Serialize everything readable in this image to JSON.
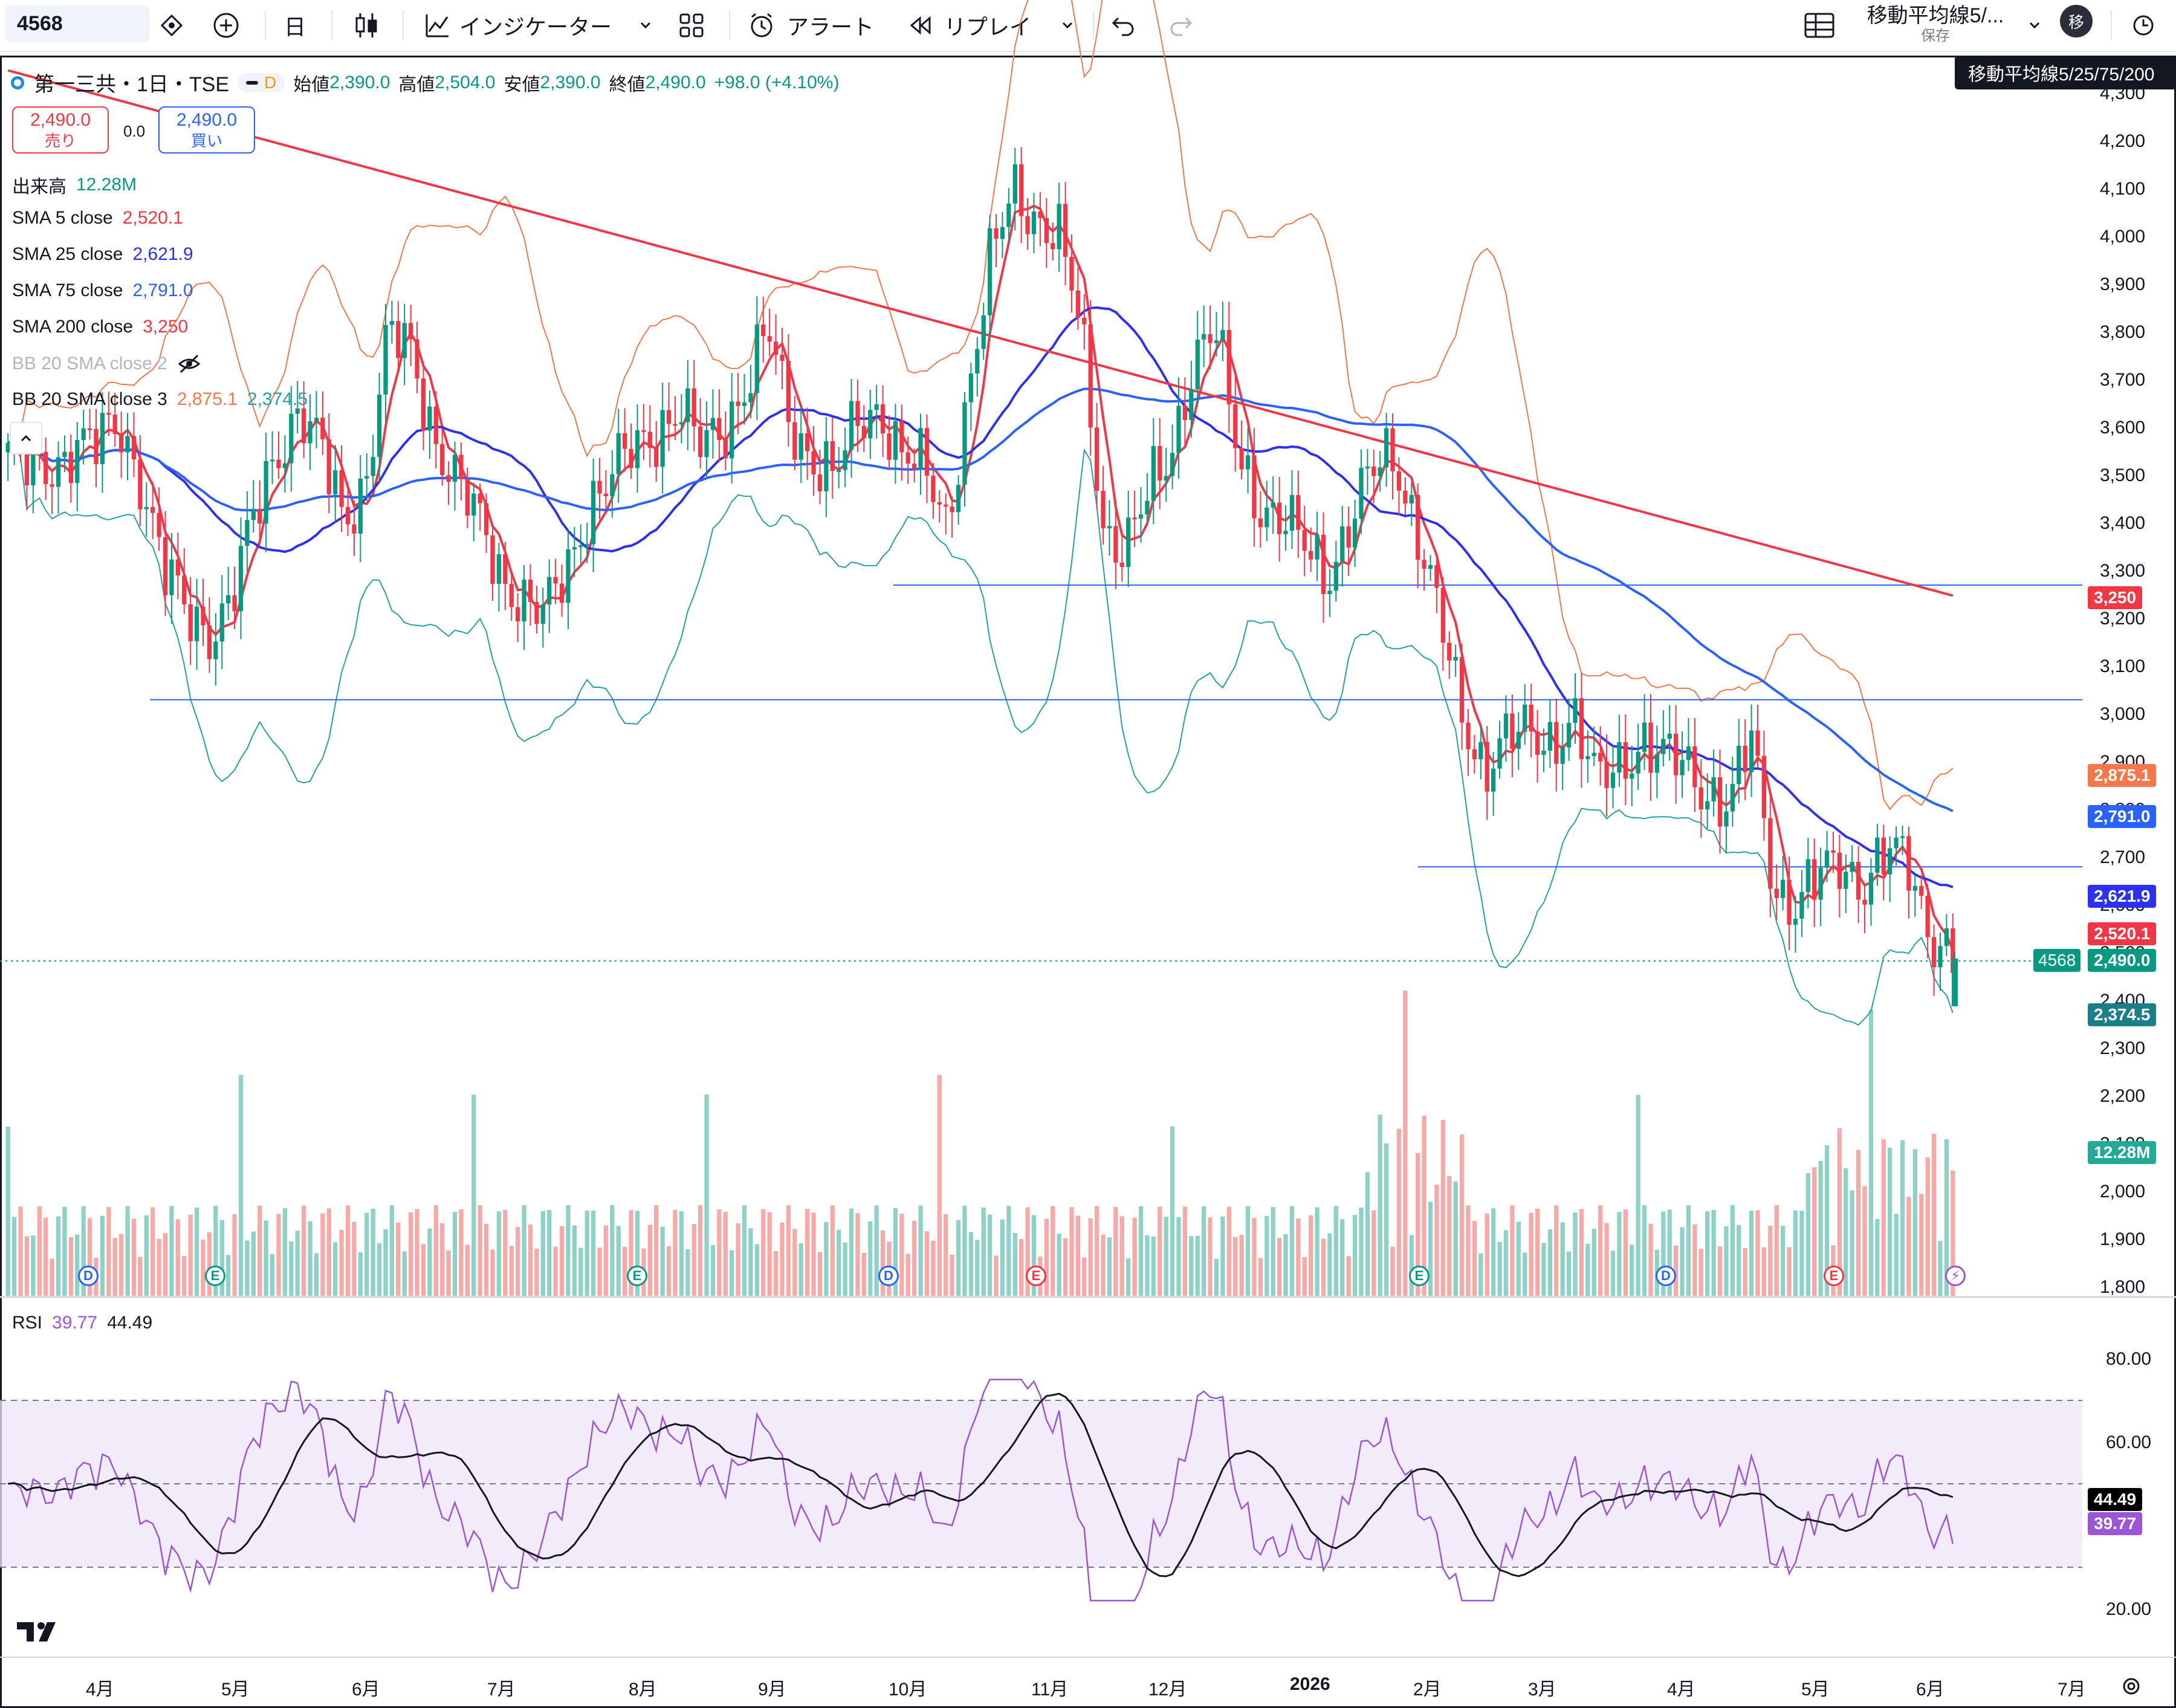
{
  "toolbar": {
    "symbol": "4568",
    "interval": "日",
    "indicators": "インジケーター",
    "alert": "アラート",
    "replay": "リプレイ",
    "layout_name": "移動平均線5/...",
    "layout_save": "保存",
    "avatar": "移",
    "tooltip": "移動平均線5/25/75/200"
  },
  "legend": {
    "title": "第一三共・1日・TSE",
    "badge": "D",
    "open_label": "始値",
    "open": "2,390.0",
    "high_label": "高値",
    "high": "2,504.0",
    "low_label": "安値",
    "low": "2,390.0",
    "close_label": "終値",
    "close": "2,490.0",
    "change": "+98.0 (+4.10%)",
    "sell_price": "2,490.0",
    "sell_label": "売り",
    "spread": "0.0",
    "buy_price": "2,490.0",
    "buy_label": "買い",
    "volume_label": "出来高",
    "volume_value": "12.28M",
    "sma5_label": "SMA 5 close",
    "sma5_value": "2,520.1",
    "sma25_label": "SMA 25 close",
    "sma25_value": "2,621.9",
    "sma75_label": "SMA 75 close",
    "sma75_value": "2,791.0",
    "sma200_label": "SMA 200 close",
    "sma200_value": "3,250",
    "bb2_label": "BB 20 SMA close 2",
    "bb3_label": "BB 20 SMA close 3",
    "bb3_upper": "2,875.1",
    "bb3_lower": "2,374.5"
  },
  "price_axis": [
    "4,300",
    "4,200",
    "4,100",
    "4,000",
    "3,900",
    "3,800",
    "3,700",
    "3,600",
    "3,500",
    "3,400",
    "3,300",
    "3,200",
    "3,100",
    "3,000",
    "2,900",
    "2,800",
    "2,700",
    "2,600",
    "2,500",
    "2,400",
    "2,300",
    "2,200",
    "2,100",
    "2,000",
    "1,900",
    "1,800"
  ],
  "price_labels": {
    "sma200": "3,250",
    "bb_upper": "2,875.1",
    "sma75": "2,791.0",
    "sma25": "2,621.9",
    "sma5": "2,520.1",
    "symbol_tag": "4568",
    "last": "2,490.0",
    "bb_lower": "2,374.5",
    "volume": "12.28M"
  },
  "rsi": {
    "label": "RSI",
    "value1": "39.77",
    "value2": "44.49",
    "axis": [
      "80.00",
      "60.00",
      "20.00"
    ],
    "tag_ma": "44.49",
    "tag_rsi": "39.77"
  },
  "time_axis": [
    "4月",
    "5月",
    "6月",
    "7月",
    "8月",
    "9月",
    "10月",
    "11月",
    "12月",
    "2026",
    "2月",
    "3月",
    "4月",
    "5月",
    "6月",
    "7月"
  ],
  "events": [
    "D",
    "E",
    "E",
    "D",
    "E",
    "E",
    "D",
    "E"
  ],
  "colors": {
    "up": "#089981",
    "down": "#f23645",
    "sma5": "#f23645",
    "sma25": "#2d30f0",
    "sma75": "#2962ff",
    "sma200": "#f23645",
    "bb": "#f7764a",
    "bb_lower": "#22a3a3",
    "rsi": "#9c55d6"
  },
  "chart_data": {
    "type": "candlestick",
    "series": [
      {
        "name": "SMA 5 close",
        "last": 2520.1
      },
      {
        "name": "SMA 25 close",
        "last": 2621.9
      },
      {
        "name": "SMA 75 close",
        "last": 2791.0
      },
      {
        "name": "SMA 200 close",
        "last": 3250
      },
      {
        "name": "BB 20 SMA close 3",
        "upper": 2875.1,
        "lower": 2374.5
      }
    ],
    "last_bar": {
      "open": 2390.0,
      "high": 2504.0,
      "low": 2390.0,
      "close": 2490.0,
      "volume": "12.28M"
    },
    "close_trend": [
      3550,
      3500,
      3520,
      3580,
      3560,
      3600,
      3500,
      3300,
      3200,
      3180,
      3250,
      3400,
      3550,
      3650,
      3550,
      3400,
      3500,
      3800,
      3750,
      3600,
      3500,
      3400,
      3300,
      3250,
      3200,
      3300,
      3450,
      3500,
      3550,
      3600,
      3650,
      3550,
      3600,
      3700,
      3800,
      3600,
      3550,
      3500,
      3600,
      3650,
      3550,
      3500,
      3400,
      3700,
      3950,
      4100,
      4050,
      4000,
      3800,
      3400,
      3350,
      3450,
      3550,
      3750,
      3800,
      3550,
      3450,
      3400,
      3350,
      3300,
      3400,
      3500,
      3550,
      3400,
      3200,
      3000,
      2900,
      2950,
      2950,
      2950,
      3000,
      2850,
      2900,
      2950,
      2900,
      2900,
      2850,
      2800,
      2950,
      2650,
      2600,
      2650,
      2700,
      2650,
      2700,
      2690,
      2550,
      2490
    ]
  }
}
